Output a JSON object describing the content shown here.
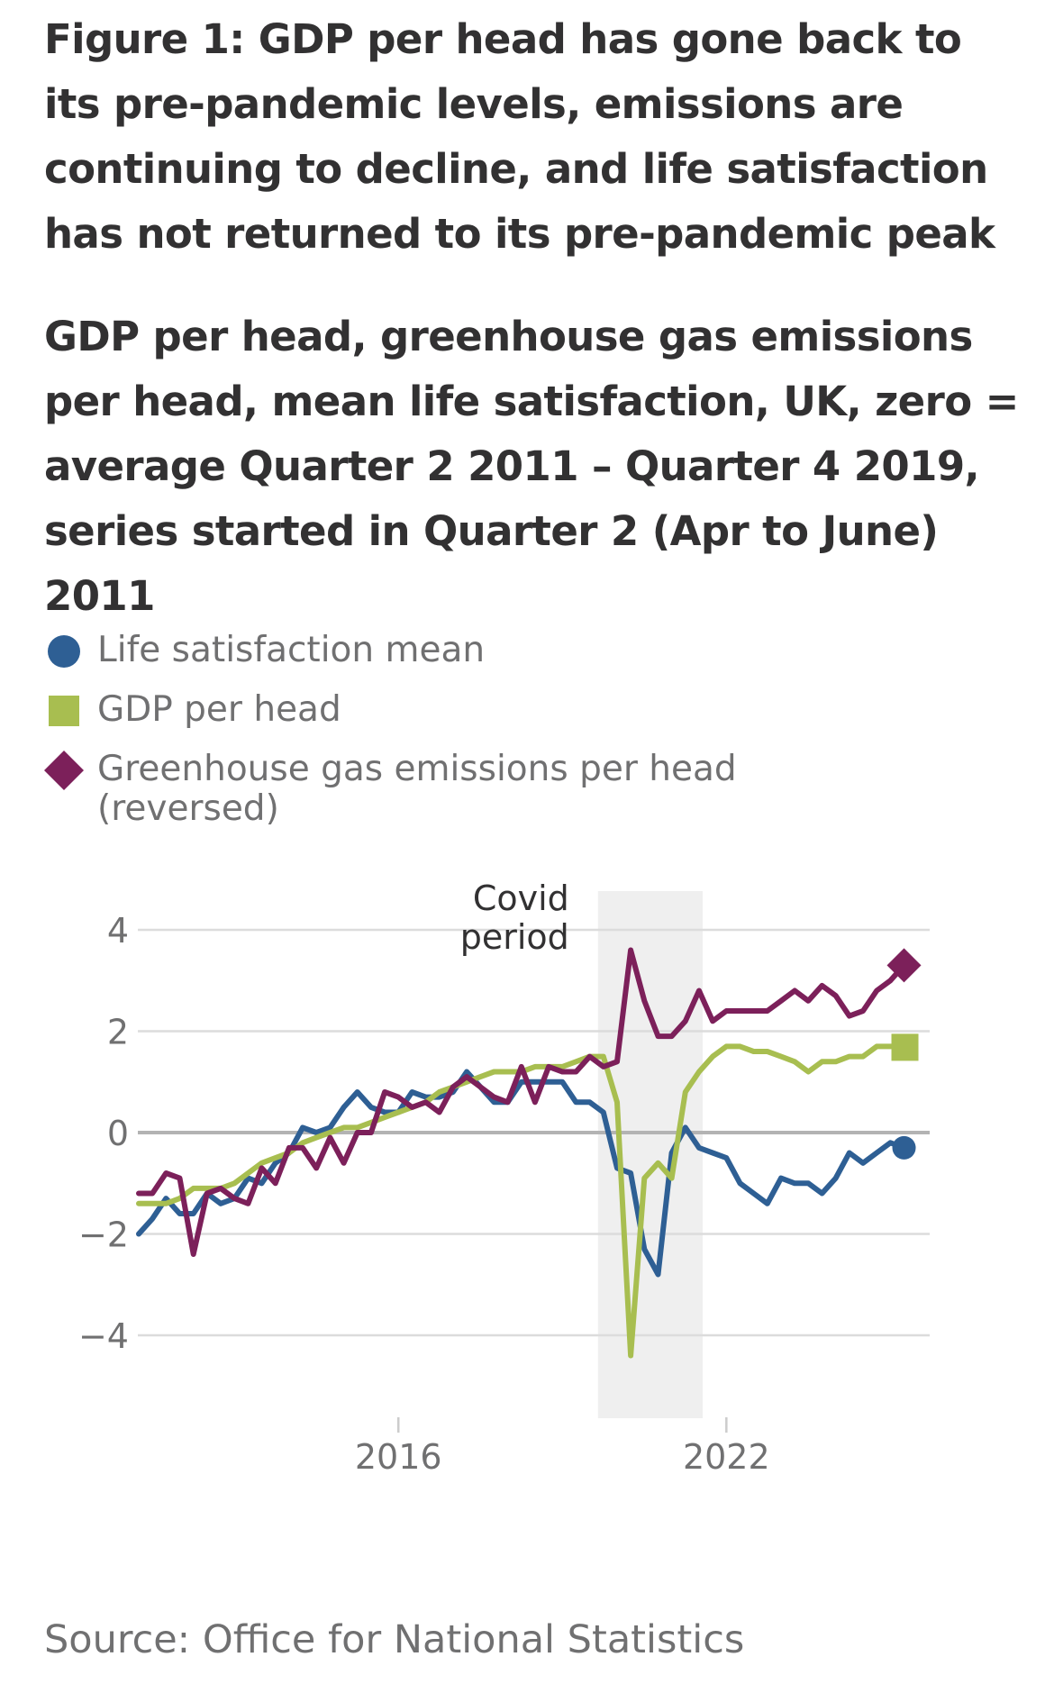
{
  "title": "Figure 1: GDP per head has gone back to its pre-pandemic levels, emissions are continuing to decline, and life satisfaction has not returned to its pre-pandemic peak",
  "subtitle": "GDP per head, greenhouse gas emissions per head, mean life satisfaction, UK, zero = average Quarter 2 2011 – Quarter 4 2019, series started in Quarter 2 (Apr to June) 2011",
  "source": "Source: Office for National Statistics",
  "legend": [
    {
      "label": "Life satisfaction mean",
      "marker": "circle",
      "color": "#2e5f94"
    },
    {
      "label": "GDP per head",
      "marker": "square",
      "color": "#a8be50"
    },
    {
      "label": "Greenhouse gas emissions per head (reversed)",
      "marker": "diamond",
      "color": "#7c205a"
    }
  ],
  "chart_data": {
    "type": "line",
    "title": "GDP per head, greenhouse gas emissions per head, mean life satisfaction, UK",
    "xlabel": "",
    "ylabel": "",
    "x_start": "2011 Q2",
    "x_step": "quarter",
    "x_ticks": [
      {
        "label": "2016",
        "quarter_index": 19
      },
      {
        "label": "2022",
        "quarter_index": 43
      }
    ],
    "y_ticks": [
      4,
      2,
      0,
      -2,
      -4
    ],
    "y_tick_labels": [
      "4",
      "2",
      "0",
      "−2",
      "−4"
    ],
    "ylim": [
      -5.6,
      5.0
    ],
    "grid": true,
    "legend_position": "top-left",
    "annotation": {
      "label_lines": [
        "Covid",
        "period"
      ],
      "shaded_from_quarter_index": 34,
      "shaded_to_quarter_index": 41
    },
    "series": [
      {
        "name": "Life satisfaction mean",
        "color": "#2e5f94",
        "end_marker": "circle",
        "values": [
          -2.0,
          -1.7,
          -1.3,
          -1.6,
          -1.6,
          -1.2,
          -1.4,
          -1.3,
          -0.9,
          -1.0,
          -0.6,
          -0.4,
          0.1,
          0.0,
          0.1,
          0.5,
          0.8,
          0.5,
          0.4,
          0.4,
          0.8,
          0.7,
          0.7,
          0.8,
          1.2,
          0.9,
          0.6,
          0.6,
          1.0,
          1.0,
          1.0,
          1.0,
          0.6,
          0.6,
          0.4,
          -0.7,
          -0.8,
          -2.3,
          -2.8,
          -0.4,
          0.1,
          -0.3,
          -0.4,
          -0.5,
          -1.0,
          -1.2,
          -1.4,
          -0.9,
          -1.0,
          -1.0,
          -1.2,
          -0.9,
          -0.4,
          -0.6,
          -0.4,
          -0.2,
          -0.3
        ]
      },
      {
        "name": "GDP per head",
        "color": "#a8be50",
        "end_marker": "square",
        "values": [
          -1.4,
          -1.4,
          -1.4,
          -1.3,
          -1.1,
          -1.1,
          -1.1,
          -1.0,
          -0.8,
          -0.6,
          -0.5,
          -0.4,
          -0.2,
          -0.1,
          0.0,
          0.1,
          0.1,
          0.2,
          0.3,
          0.4,
          0.5,
          0.6,
          0.8,
          0.9,
          1.0,
          1.1,
          1.2,
          1.2,
          1.2,
          1.3,
          1.3,
          1.3,
          1.4,
          1.5,
          1.5,
          0.6,
          -4.4,
          -0.9,
          -0.6,
          -0.9,
          0.8,
          1.2,
          1.5,
          1.7,
          1.7,
          1.6,
          1.6,
          1.5,
          1.4,
          1.2,
          1.4,
          1.4,
          1.5,
          1.5,
          1.7,
          1.7,
          1.7
        ]
      },
      {
        "name": "Greenhouse gas emissions per head (reversed)",
        "color": "#7c205a",
        "end_marker": "diamond",
        "values": [
          -1.2,
          -1.2,
          -0.8,
          -0.9,
          -2.4,
          -1.2,
          -1.1,
          -1.3,
          -1.4,
          -0.7,
          -1.0,
          -0.3,
          -0.3,
          -0.7,
          -0.1,
          -0.6,
          0.0,
          0.0,
          0.8,
          0.7,
          0.5,
          0.6,
          0.4,
          0.9,
          1.1,
          0.9,
          0.7,
          0.6,
          1.3,
          0.6,
          1.3,
          1.2,
          1.2,
          1.5,
          1.3,
          1.4,
          3.6,
          2.6,
          1.9,
          1.9,
          2.2,
          2.8,
          2.2,
          2.4,
          2.4,
          2.4,
          2.4,
          2.6,
          2.8,
          2.6,
          2.9,
          2.7,
          2.3,
          2.4,
          2.8,
          3.0,
          3.3
        ]
      }
    ]
  }
}
